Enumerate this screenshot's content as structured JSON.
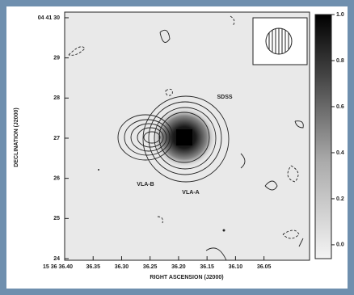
{
  "chart_data": {
    "type": "contour",
    "xlabel": "RIGHT ASCENSION (J2000)",
    "ylabel": "DECLINATION (J2000)",
    "xlim": [
      36.4,
      35.97
    ],
    "xticks": [
      {
        "value": 36.4,
        "label": "15 36 36.40"
      },
      36.35,
      {
        "value": 36.3,
        "label": "36.30"
      },
      36.25,
      {
        "value": 36.2,
        "label": "36.20"
      },
      36.15,
      {
        "value": 36.1,
        "label": "36.10"
      },
      36.05
    ],
    "ylim": [
      23.96,
      30.14
    ],
    "yticks": [
      {
        "value": 30,
        "label": "04 41 30"
      },
      29,
      28,
      27,
      26,
      25,
      24
    ],
    "clim": [
      -0.06,
      1.0
    ],
    "cticks": [
      {
        "value": 1,
        "label": "1.0"
      },
      0.8,
      0.6,
      0.4,
      0.2,
      {
        "value": 0,
        "label": "0.0"
      }
    ],
    "annotations": [
      "SDSS",
      "VLA-B",
      "VLA-A"
    ]
  }
}
